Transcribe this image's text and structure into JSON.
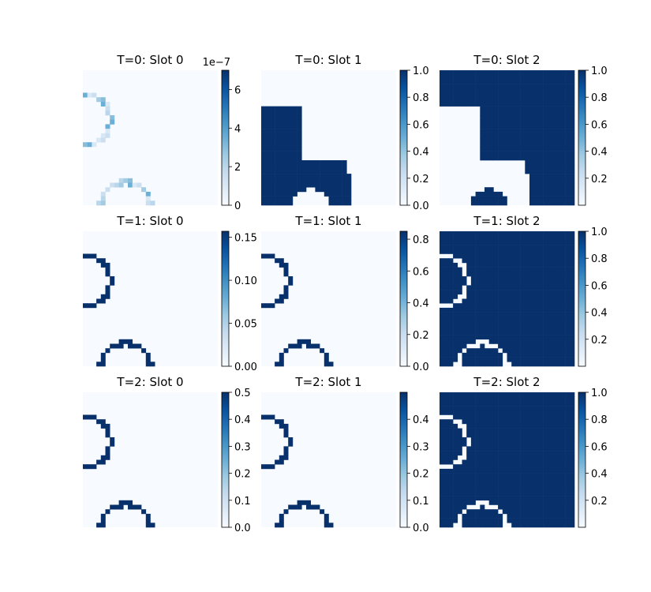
{
  "figure": {
    "colormap": "Blues",
    "cmap_light": "#f7fbff",
    "cmap_dark": "#08306b"
  },
  "chart_data": [
    {
      "type": "heatmap",
      "title": "T=0: Slot 0",
      "colorbar_ticks": [
        "0",
        "2",
        "4",
        "6"
      ],
      "colorbar_range": [
        0,
        7
      ],
      "colorbar_offset": "1e−7",
      "pattern": "rings-faint"
    },
    {
      "type": "heatmap",
      "title": "T=0: Slot 1",
      "colorbar_ticks": [
        "0.0",
        "0.2",
        "0.4",
        "0.6",
        "0.8",
        "1.0"
      ],
      "colorbar_range": [
        0,
        1
      ],
      "pattern": "blob"
    },
    {
      "type": "heatmap",
      "title": "T=0: Slot 2",
      "colorbar_ticks": [
        "0.2",
        "0.4",
        "0.6",
        "0.8",
        "1.0"
      ],
      "colorbar_range": [
        0,
        1
      ],
      "pattern": "blob-inverse"
    },
    {
      "type": "heatmap",
      "title": "T=1: Slot 0",
      "colorbar_ticks": [
        "0.00",
        "0.05",
        "0.10",
        "0.15"
      ],
      "colorbar_range": [
        0,
        0.157
      ],
      "pattern": "rings"
    },
    {
      "type": "heatmap",
      "title": "T=1: Slot 1",
      "colorbar_ticks": [
        "0.0",
        "0.2",
        "0.4",
        "0.6",
        "0.8"
      ],
      "colorbar_range": [
        0,
        0.85
      ],
      "pattern": "rings"
    },
    {
      "type": "heatmap",
      "title": "T=1: Slot 2",
      "colorbar_ticks": [
        "0.2",
        "0.4",
        "0.6",
        "0.8",
        "1.0"
      ],
      "colorbar_range": [
        0,
        1
      ],
      "pattern": "rings-inverse"
    },
    {
      "type": "heatmap",
      "title": "T=2: Slot 0",
      "colorbar_ticks": [
        "0.0",
        "0.1",
        "0.2",
        "0.3",
        "0.4",
        "0.5"
      ],
      "colorbar_range": [
        0,
        0.5
      ],
      "pattern": "rings"
    },
    {
      "type": "heatmap",
      "title": "T=2: Slot 1",
      "colorbar_ticks": [
        "0.0",
        "0.1",
        "0.2",
        "0.3",
        "0.4"
      ],
      "colorbar_range": [
        0,
        0.5
      ],
      "pattern": "rings"
    },
    {
      "type": "heatmap",
      "title": "T=2: Slot 2",
      "colorbar_ticks": [
        "0.2",
        "0.4",
        "0.6",
        "0.8",
        "1.0"
      ],
      "colorbar_range": [
        0,
        1
      ],
      "pattern": "rings-inverse"
    }
  ]
}
